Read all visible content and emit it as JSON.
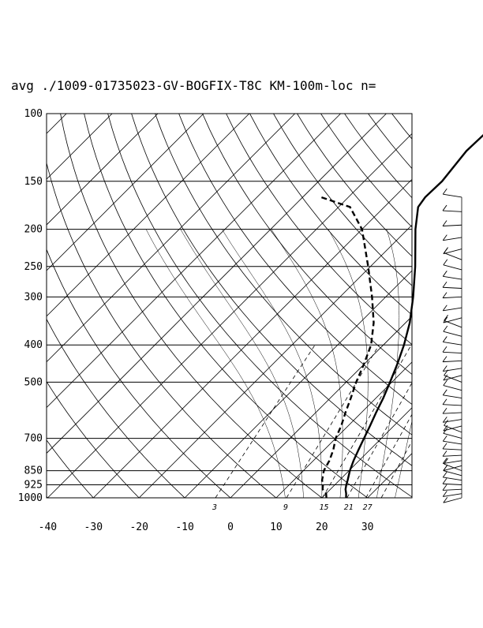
{
  "chart_data": {
    "type": "line",
    "title": "avg ./1009-01735023-GV-BOGFIX-T8C KM-100m-loc n=",
    "pressure_ticks": [
      100,
      150,
      200,
      250,
      300,
      400,
      500,
      700,
      850,
      925,
      1000
    ],
    "x_ticks": [
      -40,
      -30,
      -20,
      -10,
      0,
      10,
      20,
      30
    ],
    "xlim": [
      -40,
      40
    ],
    "ylim": [
      1000,
      100
    ],
    "y_scale": "log",
    "mixing_ratio_labels": [
      "3",
      "9",
      "15",
      "21",
      "27"
    ],
    "series": [
      {
        "style": "solid",
        "points": [
          [
            1000,
            25.3
          ],
          [
            975,
            24.4
          ],
          [
            950,
            23.3
          ],
          [
            925,
            22.5
          ],
          [
            900,
            21.8
          ],
          [
            850,
            20.2
          ],
          [
            800,
            18.8
          ],
          [
            750,
            17.5
          ],
          [
            700,
            16.2
          ],
          [
            650,
            14.8
          ],
          [
            600,
            13.2
          ],
          [
            550,
            11.6
          ],
          [
            500,
            9.6
          ],
          [
            450,
            7.3
          ],
          [
            400,
            4.5
          ],
          [
            350,
            0.9
          ],
          [
            300,
            -4.0
          ],
          [
            250,
            -10.2
          ],
          [
            200,
            -18.3
          ],
          [
            175,
            -22.6
          ],
          [
            165,
            -23.2
          ],
          [
            150,
            -23.0
          ],
          [
            125,
            -24.3
          ],
          [
            110,
            -24.0
          ],
          [
            100,
            -23.5
          ]
        ]
      },
      {
        "style": "dashed",
        "points": [
          [
            1000,
            21.0
          ],
          [
            975,
            20.0
          ],
          [
            950,
            18.3
          ],
          [
            925,
            17.4
          ],
          [
            900,
            16.2
          ],
          [
            850,
            14.5
          ],
          [
            800,
            13.5
          ],
          [
            750,
            12.0
          ],
          [
            700,
            10.0
          ],
          [
            650,
            8.5
          ],
          [
            600,
            6.5
          ],
          [
            550,
            4.5
          ],
          [
            500,
            2.2
          ],
          [
            450,
            0.0
          ],
          [
            400,
            -2.7
          ],
          [
            350,
            -7.0
          ],
          [
            300,
            -13.0
          ],
          [
            250,
            -20.5
          ],
          [
            200,
            -30.0
          ],
          [
            175,
            -37.5
          ],
          [
            165,
            -46.0
          ]
        ]
      }
    ],
    "wind_barbs": {
      "levels": [
        1000,
        975,
        950,
        925,
        900,
        875,
        850,
        825,
        800,
        775,
        750,
        725,
        700,
        675,
        650,
        625,
        600,
        575,
        550,
        525,
        500,
        480,
        460,
        440,
        420,
        400,
        380,
        360,
        340,
        320,
        300,
        285,
        270,
        255,
        240,
        225,
        210,
        195,
        180,
        165
      ]
    }
  }
}
